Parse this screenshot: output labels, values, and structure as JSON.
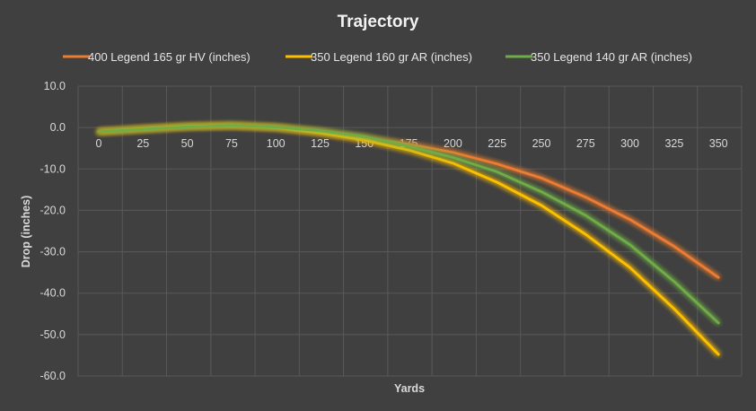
{
  "chart_data": {
    "type": "line",
    "title": "Trajectory",
    "xlabel": "Yards",
    "ylabel": "Drop (inches)",
    "x": [
      0,
      25,
      50,
      75,
      100,
      125,
      150,
      175,
      200,
      225,
      250,
      275,
      300,
      325,
      350
    ],
    "x_tick_labels": [
      "0",
      "25",
      "50",
      "75",
      "100",
      "125",
      "150",
      "175",
      "200",
      "225",
      "250",
      "275",
      "300",
      "325",
      "350"
    ],
    "y_tick_labels": [
      "10.0",
      "0.0",
      "-10.0",
      "-20.0",
      "-30.0",
      "-40.0",
      "-50.0",
      "-60.0"
    ],
    "ylim": [
      -60,
      10
    ],
    "grid": true,
    "legend_position": "top",
    "series": [
      {
        "name": "400 Legend 165 gr HV (inches)",
        "color": "#ed7d31",
        "values": [
          -1.0,
          -0.4,
          0.2,
          0.4,
          0.0,
          -1.0,
          -2.5,
          -4.0,
          -6.0,
          -8.8,
          -12.2,
          -16.8,
          -22.2,
          -28.7,
          -36.2
        ]
      },
      {
        "name": "350 Legend 160 gr AR (inches)",
        "color": "#ffc000",
        "values": [
          -1.0,
          -0.3,
          0.3,
          0.5,
          0.0,
          -1.3,
          -3.0,
          -5.4,
          -8.6,
          -13.2,
          -18.8,
          -25.8,
          -33.8,
          -43.8,
          -54.8
        ]
      },
      {
        "name": "350 Legend 140 gr AR (inches)",
        "color": "#70ad47",
        "values": [
          -1.0,
          -0.4,
          0.2,
          0.5,
          0.1,
          -0.8,
          -2.2,
          -4.5,
          -7.2,
          -10.7,
          -15.5,
          -21.2,
          -28.3,
          -37.2,
          -47.2
        ]
      }
    ]
  }
}
